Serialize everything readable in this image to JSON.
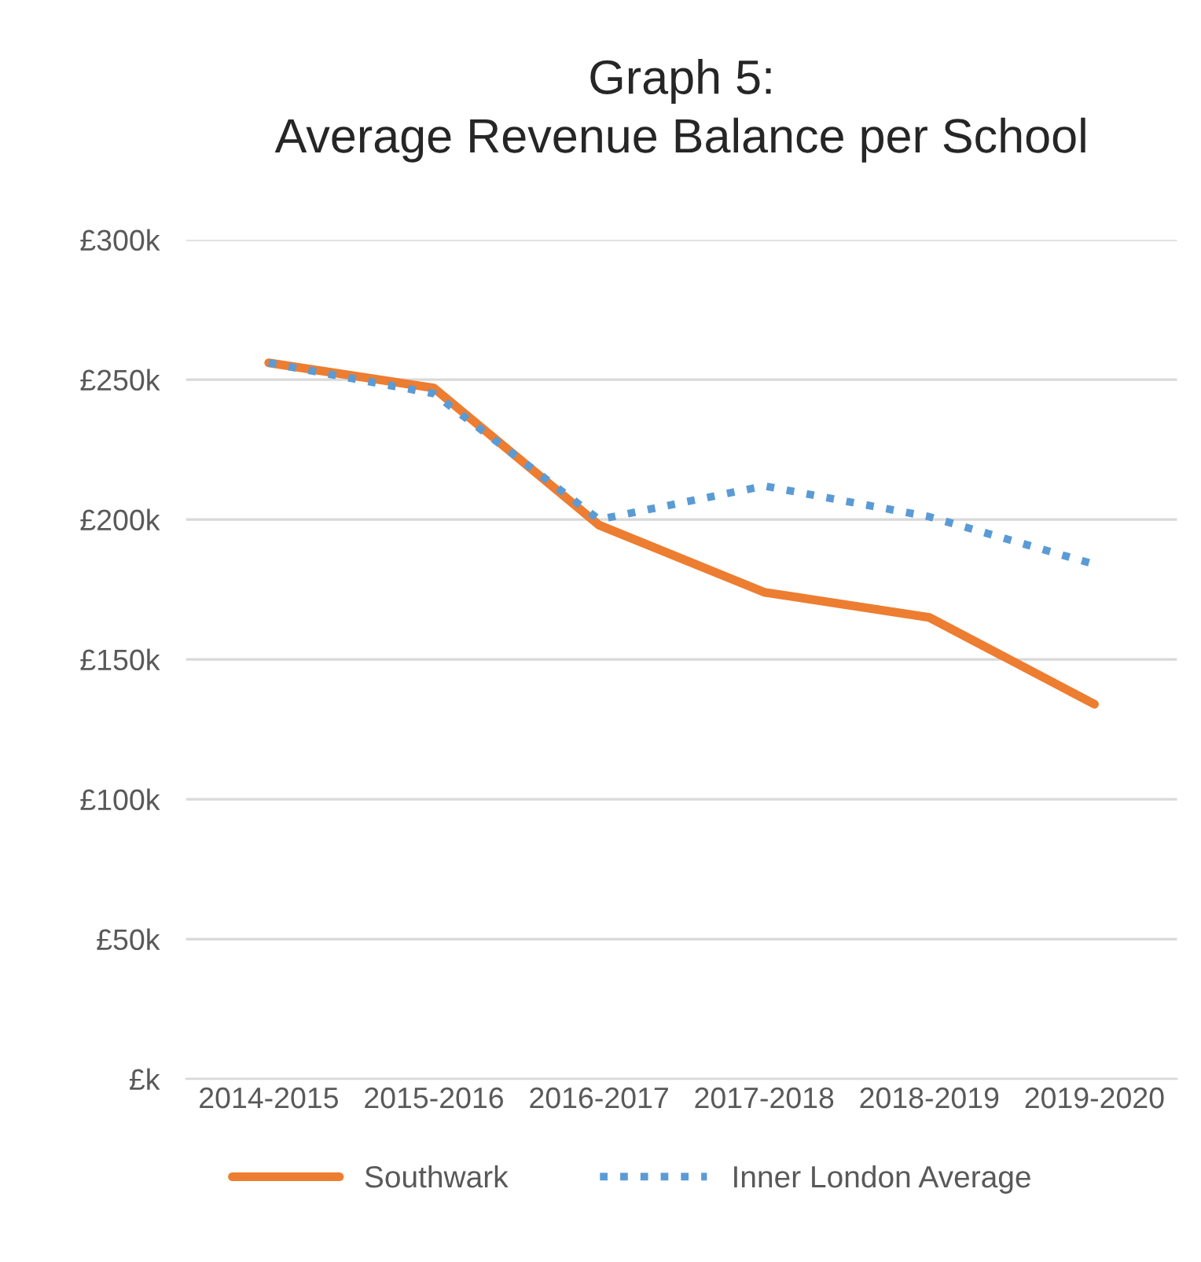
{
  "chart_data": {
    "type": "line",
    "title": "Graph 5:\nAverage Revenue Balance per School",
    "categories": [
      "2014-2015",
      "2015-2016",
      "2016-2017",
      "2017-2018",
      "2018-2019",
      "2019-2020"
    ],
    "series": [
      {
        "name": "Southwark",
        "color": "#ed7d31",
        "line_style": "solid",
        "values": [
          256,
          247,
          198,
          174,
          165,
          134
        ]
      },
      {
        "name": "Inner London Average",
        "color": "#5b9bd5",
        "line_style": "dotted",
        "values": [
          256,
          245,
          200,
          212,
          201,
          184
        ]
      }
    ],
    "ylim": [
      0,
      300
    ],
    "yticks": [
      {
        "value": 0,
        "label": "£k"
      },
      {
        "value": 50,
        "label": "£50k"
      },
      {
        "value": 100,
        "label": "£100k"
      },
      {
        "value": 150,
        "label": "£150k"
      },
      {
        "value": 200,
        "label": "£200k"
      },
      {
        "value": 250,
        "label": "£250k"
      },
      {
        "value": 300,
        "label": "£300k"
      }
    ],
    "grid": "y",
    "legend": "bottom",
    "marker": "none"
  }
}
